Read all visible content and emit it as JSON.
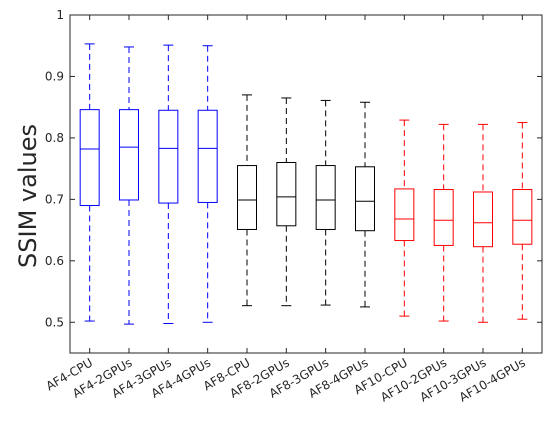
{
  "chart_data": {
    "type": "boxplot",
    "title": "",
    "xlabel": "",
    "ylabel": "SSIM values",
    "ylim": [
      0.45,
      1.0
    ],
    "yticks": [
      0.5,
      0.6,
      0.7,
      0.8,
      0.9,
      1
    ],
    "ytick_labels": [
      "0.5",
      "0.6",
      "0.7",
      "0.8",
      "0.9",
      "1"
    ],
    "grid": false,
    "categories": [
      "AF4-CPU",
      "AF4-2GPUs",
      "AF4-3GPUs",
      "AF4-4GPUs",
      "AF8-CPU",
      "AF8-2GPUs",
      "AF8-3GPUs",
      "AF8-4GPUs",
      "AF10-CPU",
      "AF10-2GPUs",
      "AF10-3GPUs",
      "AF10-4GPUs"
    ],
    "boxes": [
      {
        "min": 0.502,
        "q1": 0.69,
        "median": 0.782,
        "q3": 0.846,
        "max": 0.953,
        "color": "#0000ff"
      },
      {
        "min": 0.497,
        "q1": 0.699,
        "median": 0.785,
        "q3": 0.846,
        "max": 0.948,
        "color": "#0000ff"
      },
      {
        "min": 0.498,
        "q1": 0.694,
        "median": 0.783,
        "q3": 0.845,
        "max": 0.951,
        "color": "#0000ff"
      },
      {
        "min": 0.5,
        "q1": 0.695,
        "median": 0.783,
        "q3": 0.845,
        "max": 0.95,
        "color": "#0000ff"
      },
      {
        "min": 0.527,
        "q1": 0.651,
        "median": 0.699,
        "q3": 0.755,
        "max": 0.87,
        "color": "#000000"
      },
      {
        "min": 0.527,
        "q1": 0.657,
        "median": 0.704,
        "q3": 0.76,
        "max": 0.865,
        "color": "#000000"
      },
      {
        "min": 0.528,
        "q1": 0.651,
        "median": 0.699,
        "q3": 0.755,
        "max": 0.861,
        "color": "#000000"
      },
      {
        "min": 0.525,
        "q1": 0.649,
        "median": 0.697,
        "q3": 0.753,
        "max": 0.858,
        "color": "#000000"
      },
      {
        "min": 0.51,
        "q1": 0.633,
        "median": 0.668,
        "q3": 0.717,
        "max": 0.829,
        "color": "#ff0000"
      },
      {
        "min": 0.502,
        "q1": 0.625,
        "median": 0.666,
        "q3": 0.716,
        "max": 0.822,
        "color": "#ff0000"
      },
      {
        "min": 0.5,
        "q1": 0.623,
        "median": 0.662,
        "q3": 0.712,
        "max": 0.822,
        "color": "#ff0000"
      },
      {
        "min": 0.505,
        "q1": 0.627,
        "median": 0.666,
        "q3": 0.716,
        "max": 0.825,
        "color": "#ff0000"
      }
    ]
  }
}
